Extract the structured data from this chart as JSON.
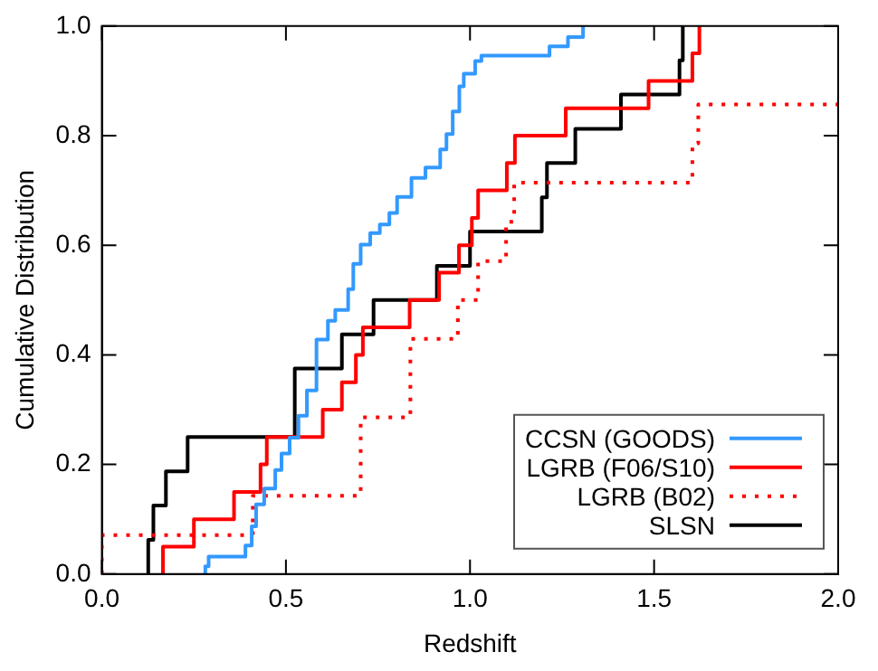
{
  "chart_data": {
    "type": "step",
    "xlabel": "Redshift",
    "ylabel": "Cumulative Distribution",
    "xlim": [
      0,
      2
    ],
    "ylim": [
      0,
      1
    ],
    "xticks": [
      {
        "value": 0,
        "label": "0.0"
      },
      {
        "value": 0.5,
        "label": "0.5"
      },
      {
        "value": 1,
        "label": "1.0"
      },
      {
        "value": 1.5,
        "label": "1.5"
      },
      {
        "value": 2,
        "label": "2.0"
      }
    ],
    "yticks": [
      {
        "value": 0,
        "label": "0.0"
      },
      {
        "value": 0.2,
        "label": "0.2"
      },
      {
        "value": 0.4,
        "label": "0.4"
      },
      {
        "value": 0.6,
        "label": "0.6"
      },
      {
        "value": 0.8,
        "label": "0.8"
      },
      {
        "value": 1,
        "label": "1.0"
      }
    ],
    "grid": false,
    "legend": "bottom right",
    "marker": "none",
    "series": [
      {
        "name": "CCSN (GOODS)",
        "color": "#3399ff",
        "line_style": "solid",
        "x": [
          0.281,
          0.281,
          0.29,
          0.39,
          0.407,
          0.419,
          0.441,
          0.471,
          0.488,
          0.51,
          0.534,
          0.557,
          0.583,
          0.614,
          0.634,
          0.669,
          0.683,
          0.703,
          0.729,
          0.755,
          0.781,
          0.802,
          0.841,
          0.879,
          0.919,
          0.936,
          0.953,
          0.971,
          0.983,
          1.014,
          1.031,
          1.216,
          1.266,
          1.307
        ],
        "values": [
          0,
          0.014,
          0.032,
          0.052,
          0.087,
          0.127,
          0.156,
          0.19,
          0.22,
          0.249,
          0.289,
          0.335,
          0.428,
          0.462,
          0.482,
          0.52,
          0.566,
          0.601,
          0.622,
          0.638,
          0.659,
          0.688,
          0.723,
          0.742,
          0.775,
          0.803,
          0.844,
          0.89,
          0.913,
          0.936,
          0.946,
          0.963,
          0.98,
          1
        ]
      },
      {
        "name": "LGRB (F06/S10)",
        "color": "#ff0000",
        "line_style": "solid",
        "x": [
          0.166,
          0.166,
          0.25,
          0.359,
          0.431,
          0.448,
          0.6,
          0.652,
          0.69,
          0.709,
          0.836,
          0.916,
          0.97,
          1.005,
          1.022,
          1.1,
          1.122,
          1.26,
          1.485,
          1.604,
          1.623
        ],
        "values": [
          0,
          0.05,
          0.1,
          0.15,
          0.2,
          0.25,
          0.3,
          0.35,
          0.4,
          0.45,
          0.5,
          0.55,
          0.6,
          0.65,
          0.7,
          0.75,
          0.8,
          0.85,
          0.9,
          0.95,
          1
        ]
      },
      {
        "name": "LGRB (B02)",
        "color": "#ff0000",
        "line_style": "dotted",
        "x": [
          0,
          0,
          0.41,
          0.703,
          0.838,
          0.967,
          1.022,
          1.098,
          1.12,
          1.604,
          1.62,
          2
        ],
        "values": [
          0,
          0.071,
          0.143,
          0.286,
          0.429,
          0.5,
          0.571,
          0.643,
          0.714,
          0.786,
          0.857,
          0.857
        ]
      },
      {
        "name": "SLSN",
        "color": "#000000",
        "line_style": "solid",
        "x": [
          0.126,
          0.126,
          0.14,
          0.174,
          0.233,
          0.524,
          0.652,
          0.738,
          0.91,
          1.0,
          1.195,
          1.209,
          1.286,
          1.41,
          1.569,
          1.578
        ],
        "values": [
          0,
          0.0625,
          0.125,
          0.1875,
          0.25,
          0.375,
          0.4375,
          0.5,
          0.5625,
          0.625,
          0.6875,
          0.75,
          0.8125,
          0.875,
          0.9375,
          1
        ]
      }
    ]
  }
}
